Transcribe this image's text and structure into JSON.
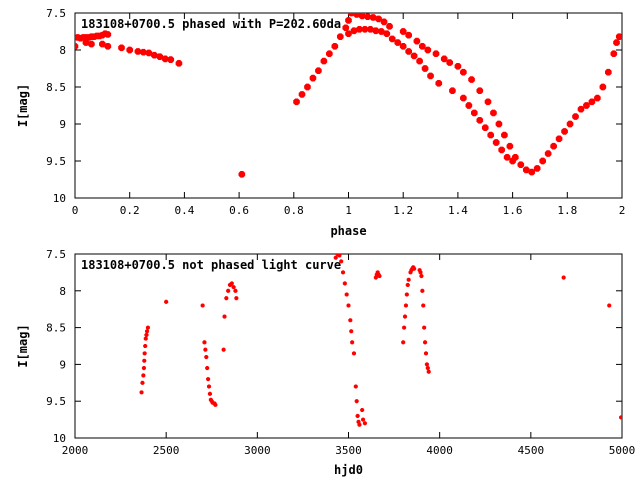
{
  "chart_data": [
    {
      "type": "scatter",
      "title": "183108+0700.5 phased with P=202.60da",
      "xlabel": "phase",
      "ylabel": "I[mag]",
      "xlim": [
        0,
        2
      ],
      "ylim": [
        7.5,
        10
      ],
      "y_inverted": true,
      "x_ticks": [
        "0",
        "0.2",
        "0.4",
        "0.6",
        "0.8",
        "1",
        "1.2",
        "1.4",
        "1.6",
        "1.8",
        "2"
      ],
      "y_ticks": [
        "7.5",
        "8",
        "8.5",
        "9",
        "9.5",
        "10"
      ],
      "grid": false,
      "marker_color": "#ff0000",
      "series": [
        {
          "x": [
            0.0,
            0.01,
            0.02,
            0.03,
            0.04,
            0.05,
            0.06,
            0.07,
            0.08,
            0.09,
            0.1,
            0.11,
            0.12,
            0.04,
            0.06,
            0.1,
            0.12,
            0.17,
            0.2,
            0.23,
            0.25,
            0.27,
            0.29,
            0.31,
            0.33,
            0.35,
            0.38,
            0.61,
            0.81,
            0.83,
            0.85,
            0.87,
            0.89,
            0.91,
            0.93,
            0.95,
            0.97,
            0.99,
            1.0,
            1.01,
            1.03,
            1.05,
            1.07,
            1.09,
            1.11,
            1.13,
            1.15,
            1.0,
            1.02,
            1.04,
            1.06,
            1.08,
            1.1,
            1.12,
            1.14,
            1.16,
            1.18,
            1.2,
            1.22,
            1.24,
            1.26,
            1.28,
            1.3,
            1.33,
            1.38,
            1.42,
            1.44,
            1.46,
            1.48,
            1.5,
            1.52,
            1.54,
            1.56,
            1.58,
            1.6,
            1.2,
            1.22,
            1.25,
            1.27,
            1.29,
            1.32,
            1.35,
            1.37,
            1.4,
            1.42,
            1.45,
            1.48,
            1.51,
            1.53,
            1.55,
            1.57,
            1.59,
            1.61,
            1.63,
            1.65,
            1.67,
            1.69,
            1.71,
            1.73,
            1.75,
            1.77,
            1.79,
            1.81,
            1.83,
            1.85,
            1.87,
            1.89,
            1.91,
            1.93,
            1.95,
            1.97,
            1.98,
            1.99
          ],
          "y": [
            7.95,
            7.83,
            7.84,
            7.83,
            7.83,
            7.83,
            7.82,
            7.82,
            7.81,
            7.81,
            7.8,
            7.78,
            7.79,
            7.9,
            7.92,
            7.92,
            7.95,
            7.97,
            8.0,
            8.02,
            8.03,
            8.04,
            8.07,
            8.09,
            8.12,
            8.13,
            8.18,
            9.68,
            8.7,
            8.6,
            8.5,
            8.38,
            8.28,
            8.15,
            8.05,
            7.95,
            7.82,
            7.7,
            7.6,
            7.5,
            7.52,
            7.54,
            7.55,
            7.56,
            7.58,
            7.62,
            7.68,
            7.78,
            7.74,
            7.72,
            7.72,
            7.72,
            7.74,
            7.75,
            7.78,
            7.85,
            7.9,
            7.95,
            8.02,
            8.08,
            8.15,
            8.25,
            8.35,
            8.45,
            8.55,
            8.65,
            8.75,
            8.85,
            8.95,
            9.05,
            9.15,
            9.25,
            9.35,
            9.45,
            9.5,
            7.75,
            7.8,
            7.88,
            7.95,
            8.0,
            8.05,
            8.12,
            8.17,
            8.22,
            8.3,
            8.4,
            8.55,
            8.7,
            8.85,
            9.0,
            9.15,
            9.3,
            9.45,
            9.55,
            9.62,
            9.65,
            9.6,
            9.5,
            9.4,
            9.3,
            9.2,
            9.1,
            9.0,
            8.9,
            8.8,
            8.75,
            8.7,
            8.65,
            8.5,
            8.3,
            8.05,
            7.9,
            7.82
          ]
        }
      ]
    },
    {
      "type": "scatter",
      "title": "183108+0700.5 not phased light curve",
      "xlabel": "hjd0",
      "ylabel": "I[mag]",
      "xlim": [
        2000,
        5000
      ],
      "ylim": [
        7.5,
        10
      ],
      "y_inverted": true,
      "x_ticks": [
        "2000",
        "2500",
        "3000",
        "3500",
        "4000",
        "4500",
        "5000"
      ],
      "y_ticks": [
        "7.5",
        "8",
        "8.5",
        "9",
        "9.5",
        "10"
      ],
      "grid": false,
      "marker_color": "#ff0000",
      "series": [
        {
          "x": [
            2365,
            2370,
            2375,
            2378,
            2380,
            2382,
            2385,
            2388,
            2392,
            2395,
            2400,
            2500,
            2700,
            2710,
            2715,
            2720,
            2725,
            2730,
            2735,
            2740,
            2745,
            2750,
            2755,
            2765,
            2770,
            2815,
            2820,
            2830,
            2840,
            2850,
            2860,
            2870,
            2880,
            2885,
            3430,
            3440,
            3450,
            3460,
            3470,
            3480,
            3490,
            3500,
            3510,
            3515,
            3520,
            3530,
            3540,
            3545,
            3550,
            3555,
            3560,
            3575,
            3580,
            3590,
            3650,
            3655,
            3660,
            3665,
            3670,
            3800,
            3805,
            3810,
            3815,
            3820,
            3825,
            3830,
            3840,
            3845,
            3850,
            3855,
            3860,
            3890,
            3895,
            3900,
            3905,
            3910,
            3915,
            3920,
            3925,
            3930,
            3935,
            3940,
            4680,
            4930,
            4995
          ],
          "y": [
            9.38,
            9.25,
            9.15,
            9.05,
            8.95,
            8.85,
            8.75,
            8.65,
            8.6,
            8.55,
            8.5,
            8.15,
            8.2,
            8.7,
            8.8,
            8.9,
            9.05,
            9.2,
            9.3,
            9.4,
            9.48,
            9.5,
            9.52,
            9.53,
            9.55,
            8.8,
            8.35,
            8.1,
            8.0,
            7.92,
            7.9,
            7.95,
            8.0,
            8.1,
            7.55,
            7.5,
            7.52,
            7.6,
            7.75,
            7.9,
            8.05,
            8.2,
            8.4,
            8.55,
            8.7,
            8.85,
            9.3,
            9.5,
            9.7,
            9.78,
            9.82,
            9.62,
            9.75,
            9.8,
            7.82,
            7.78,
            7.75,
            7.78,
            7.8,
            8.7,
            8.5,
            8.35,
            8.2,
            8.05,
            7.92,
            7.85,
            7.75,
            7.72,
            7.7,
            7.68,
            7.7,
            7.72,
            7.75,
            7.8,
            8.0,
            8.2,
            8.5,
            8.7,
            8.85,
            9.0,
            9.05,
            9.1,
            7.82,
            8.2,
            9.72
          ]
        }
      ]
    }
  ]
}
